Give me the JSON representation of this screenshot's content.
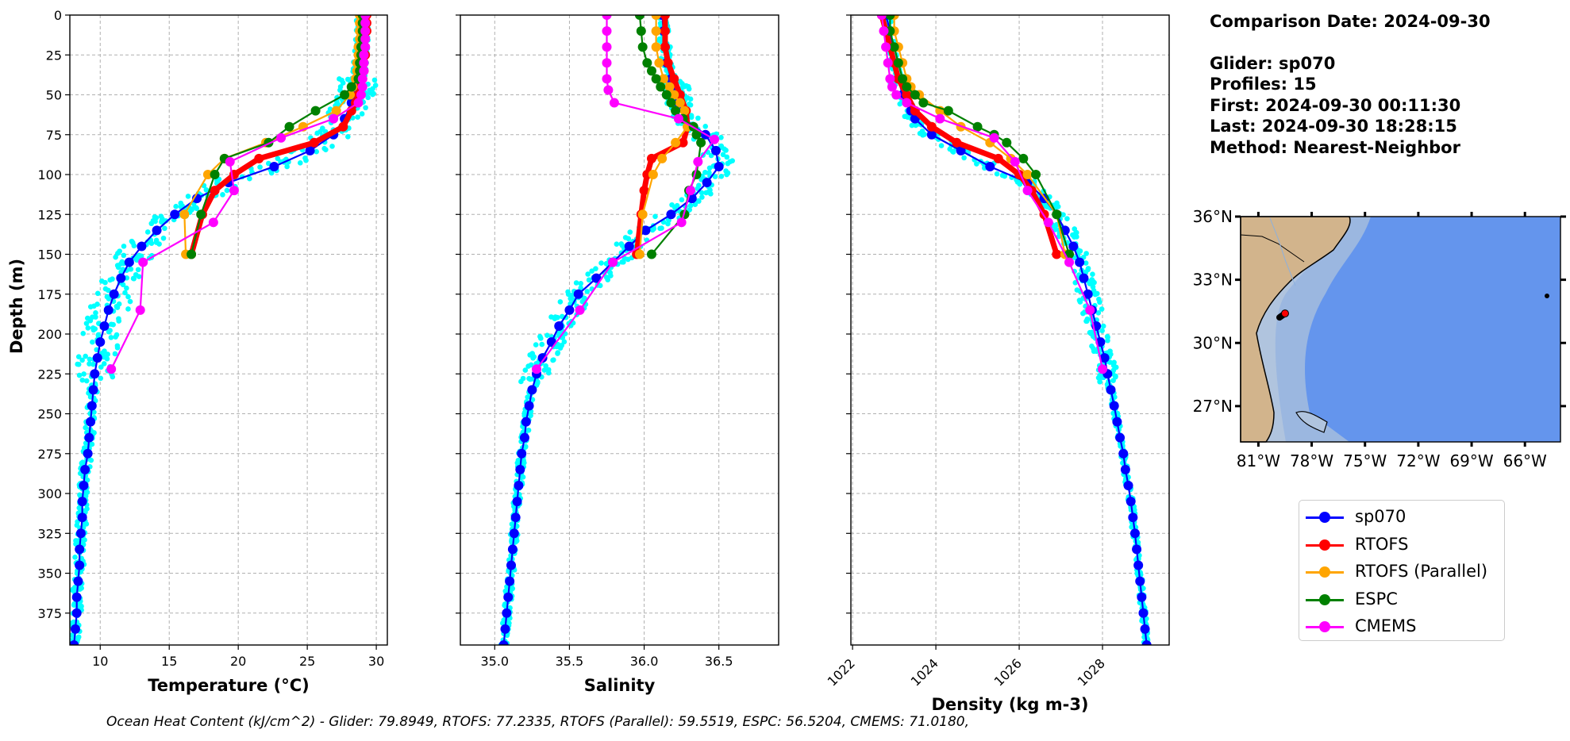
{
  "info": {
    "comparison_date": "Comparison Date: 2024-09-30",
    "glider": "Glider: sp070",
    "profiles": "Profiles: 15",
    "first": "First: 2024-09-30 00:11:30",
    "last": "Last: 2024-09-30 18:28:15",
    "method": "Method: Nearest-Neighbor"
  },
  "footer": "Ocean Heat Content (kJ/cm^2) - Glider: 79.8949,  RTOFS: 77.2335,  RTOFS (Parallel): 59.5519,  ESPC: 56.5204,  CMEMS: 71.0180,",
  "legend": [
    {
      "label": "sp070",
      "color": "#0000ff"
    },
    {
      "label": "RTOFS",
      "color": "#ff0000"
    },
    {
      "label": "RTOFS (Parallel)",
      "color": "#ffa500"
    },
    {
      "label": "ESPC",
      "color": "#008000"
    },
    {
      "label": "CMEMS",
      "color": "#ff00ff"
    }
  ],
  "chart_data": [
    {
      "type": "line",
      "title": "",
      "xlabel": "Temperature (°C)",
      "ylabel": "Depth (m)",
      "xlim": [
        7.8,
        30.8
      ],
      "ylim": [
        395,
        0
      ],
      "xticks": [
        10,
        15,
        20,
        25,
        30
      ],
      "yticks": [
        0,
        25,
        50,
        75,
        100,
        125,
        150,
        175,
        200,
        225,
        250,
        275,
        300,
        325,
        350,
        375
      ],
      "grid": true,
      "series": [
        {
          "name": "sp070",
          "color": "#0000ff",
          "depth": [
            0,
            5,
            10,
            15,
            20,
            25,
            30,
            35,
            40,
            45,
            50,
            55,
            65,
            75,
            85,
            95,
            105,
            115,
            125,
            135,
            145,
            155,
            165,
            175,
            185,
            195,
            205,
            215,
            225,
            235,
            245,
            255,
            265,
            275,
            285,
            295,
            305,
            315,
            325,
            335,
            345,
            355,
            365,
            375,
            385,
            395
          ],
          "values": [
            29.0,
            29.0,
            29.0,
            29.0,
            28.9,
            28.9,
            28.8,
            28.8,
            28.7,
            28.6,
            28.4,
            28.2,
            27.7,
            26.9,
            25.2,
            22.6,
            19.3,
            17.0,
            15.4,
            14.1,
            13.0,
            12.1,
            11.5,
            11.0,
            10.6,
            10.3,
            10.0,
            9.8,
            9.6,
            9.5,
            9.4,
            9.3,
            9.2,
            9.1,
            8.9,
            8.8,
            8.7,
            8.7,
            8.6,
            8.5,
            8.5,
            8.4,
            8.3,
            8.3,
            8.2,
            8.1
          ]
        },
        {
          "name": "RTOFS",
          "color": "#ff0000",
          "depth": [
            0,
            5,
            10,
            15,
            20,
            25,
            30,
            35,
            40,
            45,
            50,
            55,
            60,
            70,
            80,
            90,
            100,
            110,
            125,
            150
          ],
          "values": [
            29.3,
            29.3,
            29.3,
            29.2,
            29.2,
            29.2,
            29.1,
            29.1,
            29.0,
            28.9,
            28.7,
            28.5,
            28.2,
            27.6,
            25.5,
            21.5,
            19.7,
            18.3,
            17.4,
            16.6
          ]
        },
        {
          "name": "RTOFS (Parallel)",
          "color": "#ffa500",
          "depth": [
            0,
            5,
            10,
            15,
            20,
            25,
            30,
            35,
            40,
            45,
            50,
            60,
            70,
            80,
            90,
            100,
            125,
            150
          ],
          "values": [
            28.8,
            28.8,
            28.8,
            28.8,
            28.7,
            28.7,
            28.6,
            28.6,
            28.5,
            28.3,
            28.1,
            27.1,
            24.7,
            22.0,
            19.0,
            17.8,
            16.1,
            16.2
          ]
        },
        {
          "name": "ESPC",
          "color": "#008000",
          "depth": [
            0,
            5,
            10,
            15,
            20,
            25,
            30,
            35,
            40,
            45,
            50,
            60,
            70,
            80,
            90,
            100,
            125,
            150
          ],
          "values": [
            29.0,
            29.0,
            29.0,
            29.0,
            28.9,
            28.9,
            28.8,
            28.8,
            28.7,
            28.2,
            27.7,
            25.6,
            23.7,
            22.2,
            19.0,
            18.3,
            17.3,
            16.6
          ]
        },
        {
          "name": "CMEMS",
          "color": "#ff00ff",
          "depth": [
            0,
            5,
            10,
            15,
            20,
            25,
            30,
            35,
            40,
            45,
            50,
            55,
            65,
            77,
            92,
            110,
            130,
            155,
            185,
            222
          ],
          "values": [
            29.2,
            29.2,
            29.2,
            29.2,
            29.2,
            29.1,
            29.1,
            29.1,
            29.0,
            29.0,
            28.9,
            28.7,
            26.9,
            23.1,
            19.4,
            19.7,
            18.2,
            13.1,
            12.9,
            10.8
          ]
        }
      ]
    },
    {
      "type": "line",
      "xlabel": "Salinity",
      "ylabel": "",
      "xlim": [
        34.77,
        36.9
      ],
      "ylim": [
        395,
        0
      ],
      "xticks": [
        "35.0",
        "35.5",
        "36.0",
        "36.5"
      ],
      "grid": true,
      "series": [
        {
          "name": "sp070",
          "color": "#0000ff",
          "depth": [
            0,
            10,
            20,
            30,
            40,
            45,
            50,
            55,
            65,
            75,
            85,
            95,
            105,
            115,
            125,
            135,
            145,
            155,
            165,
            175,
            185,
            195,
            205,
            215,
            225,
            235,
            245,
            255,
            265,
            275,
            285,
            295,
            305,
            315,
            325,
            335,
            345,
            355,
            365,
            375,
            385,
            395
          ],
          "values": [
            36.12,
            36.13,
            36.14,
            36.15,
            36.18,
            36.2,
            36.22,
            36.23,
            36.27,
            36.41,
            36.48,
            36.5,
            36.42,
            36.32,
            36.18,
            36.01,
            35.9,
            35.79,
            35.68,
            35.56,
            35.5,
            35.43,
            35.38,
            35.32,
            35.28,
            35.25,
            35.23,
            35.21,
            35.2,
            35.18,
            35.17,
            35.16,
            35.15,
            35.14,
            35.13,
            35.12,
            35.11,
            35.1,
            35.09,
            35.08,
            35.07,
            35.06
          ]
        },
        {
          "name": "RTOFS",
          "color": "#ff0000",
          "depth": [
            0,
            10,
            20,
            30,
            40,
            50,
            60,
            70,
            80,
            90,
            100,
            110,
            125,
            150
          ],
          "values": [
            36.14,
            36.14,
            36.14,
            36.16,
            36.2,
            36.24,
            36.28,
            36.29,
            36.26,
            36.05,
            36.02,
            36.0,
            35.98,
            35.95
          ]
        },
        {
          "name": "RTOFS (Parallel)",
          "color": "#ffa500",
          "depth": [
            0,
            10,
            20,
            30,
            40,
            45,
            50,
            55,
            60,
            70,
            80,
            90,
            100,
            125,
            150
          ],
          "values": [
            36.08,
            36.08,
            36.08,
            36.1,
            36.13,
            36.17,
            36.2,
            36.24,
            36.27,
            36.29,
            36.21,
            36.12,
            36.06,
            35.99,
            35.97
          ]
        },
        {
          "name": "ESPC",
          "color": "#008000",
          "depth": [
            0,
            10,
            20,
            30,
            35,
            40,
            45,
            50,
            55,
            60,
            65,
            70,
            75,
            80,
            100,
            110,
            125,
            150
          ],
          "values": [
            35.97,
            35.98,
            35.99,
            36.02,
            36.05,
            36.08,
            36.11,
            36.15,
            36.18,
            36.21,
            36.26,
            36.33,
            36.35,
            36.38,
            36.35,
            36.3,
            36.27,
            36.05
          ]
        },
        {
          "name": "CMEMS",
          "color": "#ff00ff",
          "depth": [
            0,
            10,
            20,
            30,
            40,
            47,
            55,
            65,
            78,
            92,
            110,
            130,
            155,
            185,
            222
          ],
          "values": [
            35.75,
            35.75,
            35.75,
            35.75,
            35.75,
            35.76,
            35.8,
            36.23,
            36.47,
            36.36,
            36.31,
            36.25,
            35.79,
            35.57,
            35.28
          ]
        }
      ]
    },
    {
      "type": "line",
      "xlabel": "Density (kg m-3)",
      "ylabel": "",
      "xlim": [
        1021.96,
        1029.6
      ],
      "ylim": [
        395,
        0
      ],
      "xticks": [
        "1022",
        "1024",
        "1026",
        "1028"
      ],
      "grid": true,
      "series": [
        {
          "name": "sp070",
          "color": "#0000ff",
          "depth": [
            0,
            10,
            20,
            30,
            40,
            50,
            60,
            65,
            75,
            85,
            95,
            105,
            115,
            125,
            135,
            145,
            155,
            165,
            175,
            185,
            195,
            205,
            215,
            225,
            235,
            245,
            255,
            265,
            275,
            285,
            295,
            305,
            315,
            325,
            335,
            345,
            355,
            365,
            375,
            385,
            395
          ],
          "values": [
            1022.8,
            1022.9,
            1022.95,
            1023.0,
            1023.1,
            1023.2,
            1023.4,
            1023.5,
            1023.9,
            1024.6,
            1025.3,
            1026.2,
            1026.6,
            1026.9,
            1027.1,
            1027.3,
            1027.45,
            1027.55,
            1027.65,
            1027.75,
            1027.85,
            1027.95,
            1028.05,
            1028.12,
            1028.2,
            1028.28,
            1028.35,
            1028.42,
            1028.5,
            1028.55,
            1028.62,
            1028.68,
            1028.73,
            1028.78,
            1028.82,
            1028.86,
            1028.9,
            1028.94,
            1028.98,
            1029.02,
            1029.06
          ]
        },
        {
          "name": "RTOFS",
          "color": "#ff0000",
          "depth": [
            0,
            10,
            20,
            30,
            40,
            50,
            60,
            70,
            80,
            90,
            100,
            110,
            125,
            150
          ],
          "values": [
            1022.7,
            1022.8,
            1022.9,
            1023.0,
            1023.1,
            1023.3,
            1023.5,
            1023.9,
            1024.5,
            1025.5,
            1026.0,
            1026.3,
            1026.6,
            1026.9
          ]
        },
        {
          "name": "RTOFS (Parallel)",
          "color": "#ffa500",
          "depth": [
            0,
            10,
            20,
            30,
            40,
            45,
            50,
            60,
            70,
            80,
            90,
            100,
            125,
            150
          ],
          "values": [
            1023.0,
            1023.0,
            1023.1,
            1023.2,
            1023.3,
            1023.4,
            1023.6,
            1024.1,
            1024.6,
            1025.3,
            1025.8,
            1026.2,
            1026.9,
            1027.1
          ]
        },
        {
          "name": "ESPC",
          "color": "#008000",
          "depth": [
            0,
            10,
            20,
            30,
            40,
            45,
            50,
            55,
            60,
            70,
            75,
            80,
            90,
            100,
            125,
            150
          ],
          "values": [
            1022.9,
            1022.9,
            1023.0,
            1023.1,
            1023.2,
            1023.3,
            1023.5,
            1023.7,
            1024.3,
            1025.0,
            1025.4,
            1025.7,
            1026.1,
            1026.4,
            1026.9,
            1027.2
          ]
        },
        {
          "name": "CMEMS",
          "color": "#ff00ff",
          "depth": [
            0,
            10,
            20,
            30,
            40,
            45,
            50,
            55,
            65,
            77,
            92,
            110,
            130,
            155,
            185,
            222
          ],
          "values": [
            1022.7,
            1022.75,
            1022.8,
            1022.85,
            1022.9,
            1022.95,
            1023.05,
            1023.3,
            1024.1,
            1025.4,
            1025.9,
            1026.2,
            1026.7,
            1027.2,
            1027.7,
            1028.0
          ]
        }
      ]
    },
    {
      "type": "map",
      "lat_ticks": [
        "36°N",
        "33°N",
        "30°N",
        "27°N"
      ],
      "lon_ticks": [
        "81°W",
        "78°W",
        "75°W",
        "72°W",
        "69°W",
        "66°W"
      ],
      "lon_range": [
        -82,
        -64
      ],
      "lat_range": [
        25.3,
        36
      ],
      "glider_position": {
        "lon": -79.5,
        "lat": 31.4
      }
    }
  ]
}
